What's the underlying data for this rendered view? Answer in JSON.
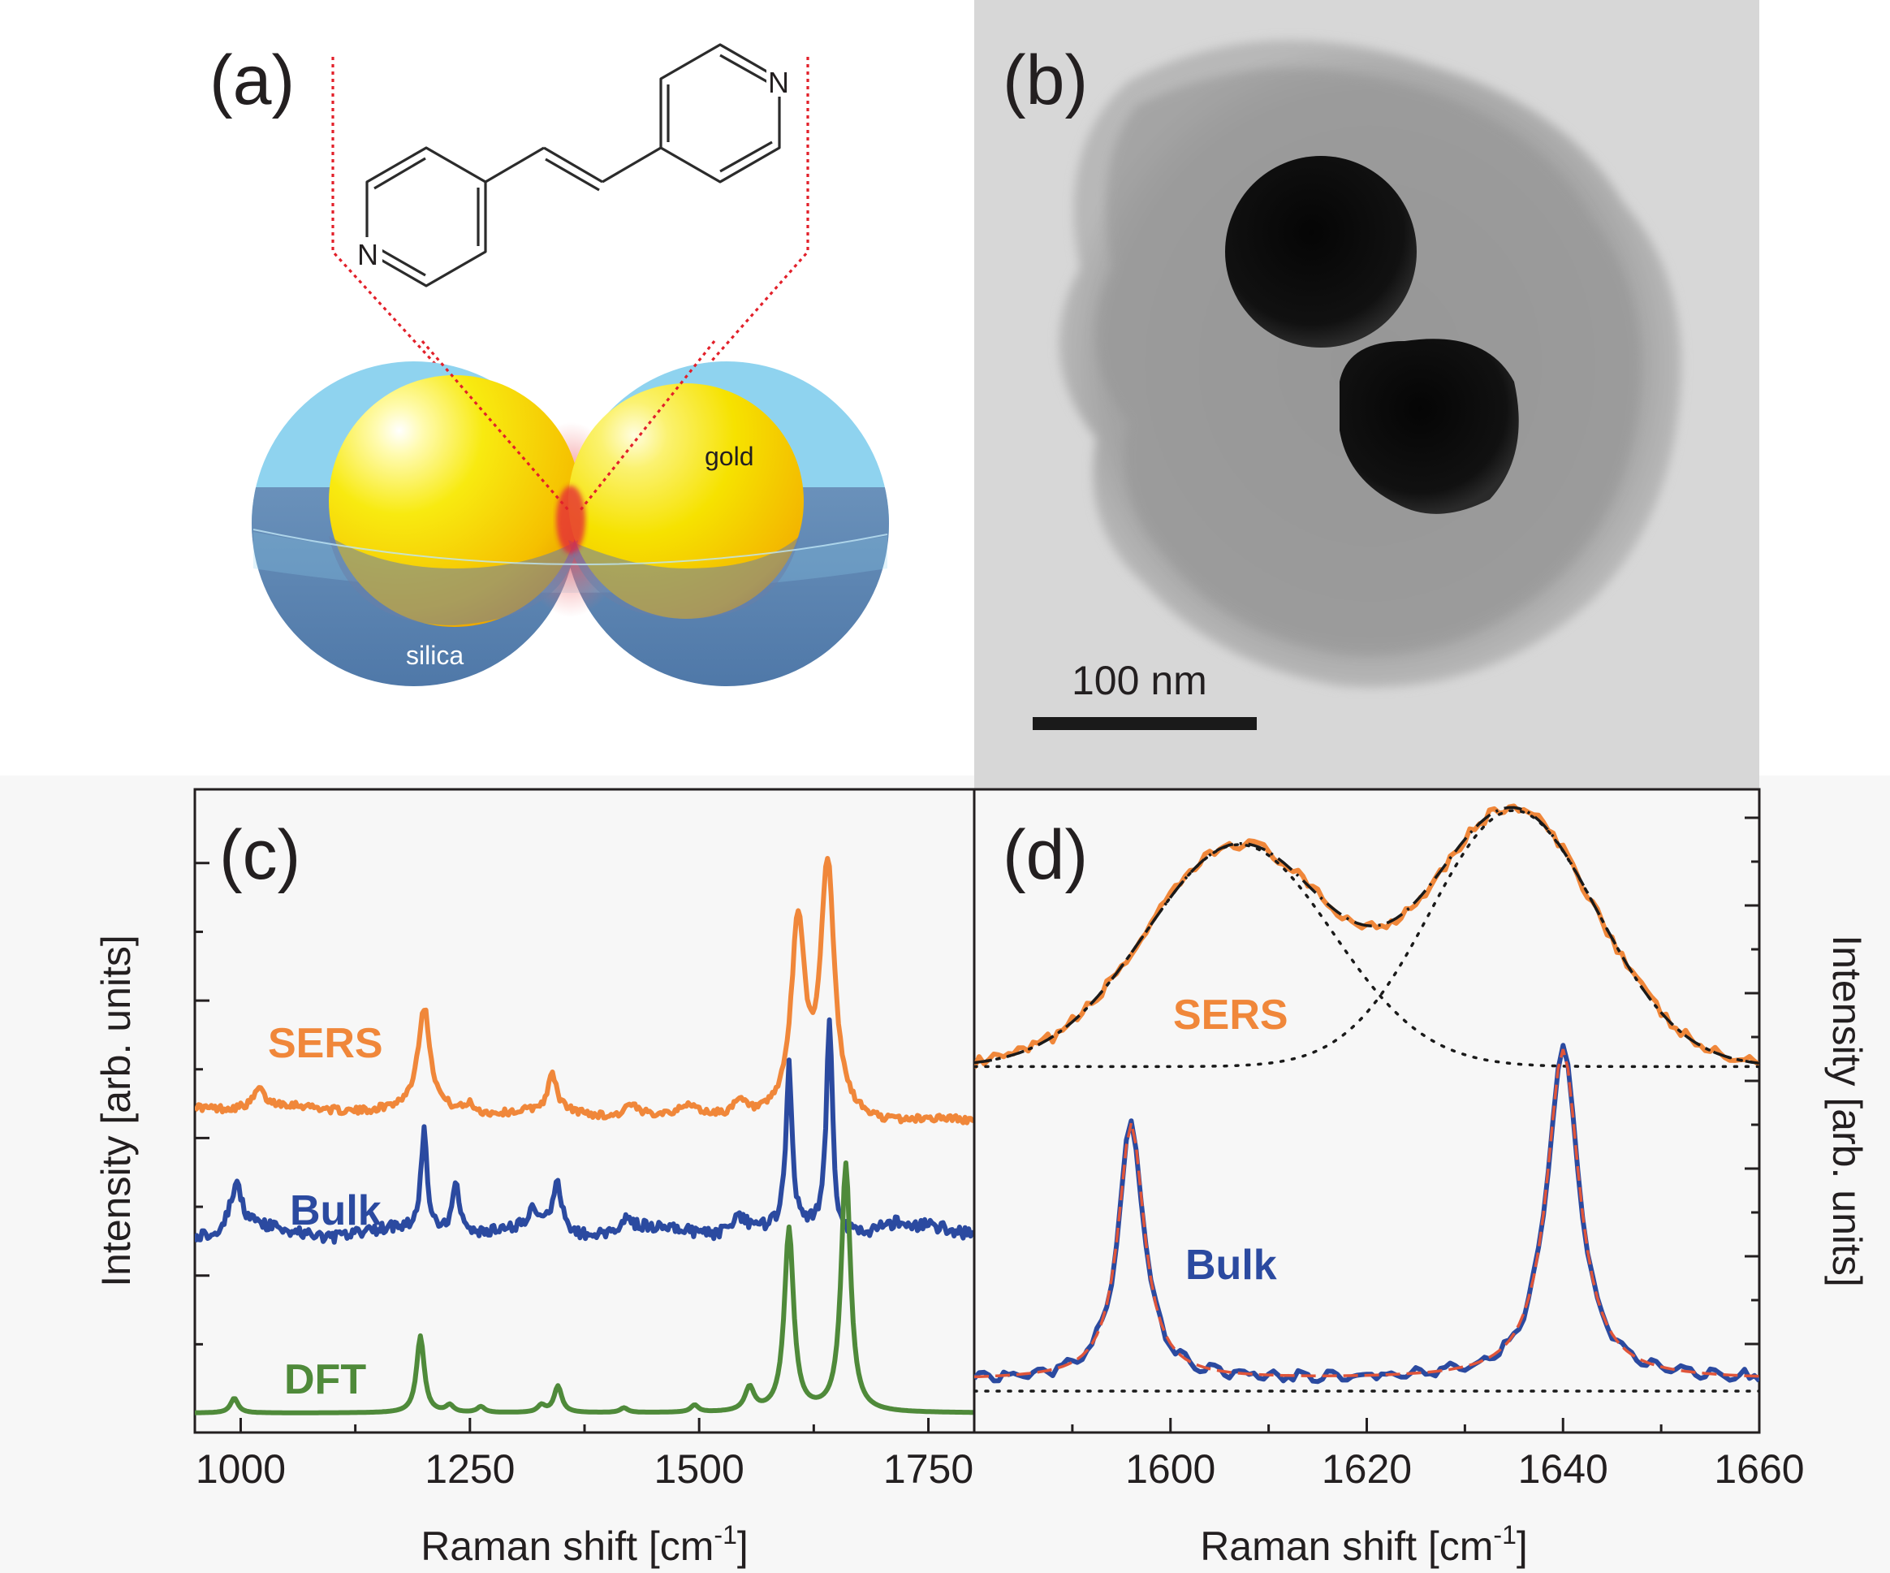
{
  "panels": {
    "a": {
      "label": "(a)",
      "gold_label": "gold",
      "silica_label": "silica",
      "atom_labels": [
        "N",
        "N"
      ]
    },
    "b": {
      "label": "(b)",
      "scalebar_label": "100 nm"
    },
    "c": {
      "label": "(c)"
    },
    "d": {
      "label": "(d)"
    }
  },
  "colors": {
    "sers": "#f0873a",
    "bulk": "#2b4aa0",
    "dft": "#4f8a3a",
    "fit_dash": "#e0553a",
    "shell": "#8fd3ef",
    "gold": "#f5d400"
  },
  "chart_data": [
    {
      "type": "line",
      "panel": "c",
      "xlabel": "Raman shift [cm",
      "xlabel_sup": "-1",
      "xlabel_end": "]",
      "ylabel": "Intensity [arb. units]",
      "xlim": [
        950,
        1800
      ],
      "xticks": [
        1000,
        1250,
        1500,
        1750
      ],
      "y_tick_labels": false,
      "series": [
        {
          "name": "SERS",
          "baseline": 0.52,
          "slope": -0.03,
          "noise": 0.006,
          "peaks": [
            [
              1020,
              0.03,
              6
            ],
            [
              1200,
              0.17,
              8
            ],
            [
              1250,
              0.015,
              6
            ],
            [
              1340,
              0.06,
              6
            ],
            [
              1425,
              0.02,
              8
            ],
            [
              1490,
              0.015,
              6
            ],
            [
              1545,
              0.025,
              10
            ],
            [
              1608,
              0.32,
              9
            ],
            [
              1640,
              0.42,
              9
            ]
          ]
        },
        {
          "name": "Bulk",
          "baseline": 0.305,
          "slope": 0.0,
          "noise": 0.01,
          "peaks": [
            [
              995,
              0.08,
              8
            ],
            [
              1200,
              0.17,
              4
            ],
            [
              1235,
              0.09,
              5
            ],
            [
              1320,
              0.03,
              6
            ],
            [
              1345,
              0.08,
              6
            ],
            [
              1420,
              0.025,
              10
            ],
            [
              1545,
              0.03,
              12
            ],
            [
              1598,
              0.27,
              4
            ],
            [
              1642,
              0.36,
              4
            ],
            [
              1710,
              0.015,
              20
            ]
          ]
        },
        {
          "name": "DFT",
          "baseline": 0.0,
          "slope": 0.0,
          "noise": 0.0,
          "peaks": [
            [
              993,
              0.025,
              5
            ],
            [
              1196,
              0.13,
              5
            ],
            [
              1228,
              0.012,
              5
            ],
            [
              1262,
              0.01,
              5
            ],
            [
              1328,
              0.012,
              5
            ],
            [
              1346,
              0.045,
              5
            ],
            [
              1418,
              0.008,
              5
            ],
            [
              1495,
              0.012,
              5
            ],
            [
              1555,
              0.04,
              6
            ],
            [
              1598,
              0.31,
              6
            ],
            [
              1660,
              0.42,
              6
            ]
          ]
        }
      ]
    },
    {
      "type": "line",
      "panel": "d",
      "xlabel": "Raman shift [cm",
      "xlabel_sup": "-1",
      "xlabel_end": "]",
      "ylabel": "Intensity [arb. units]",
      "xlim": [
        1580,
        1660
      ],
      "xticks": [
        1600,
        1620,
        1640,
        1660
      ],
      "y_tick_labels": false,
      "series": [
        {
          "name": "SERS",
          "baseline": 0.57,
          "noise": 0.01,
          "peaks": [
            [
              1607,
              0.39,
              9.5
            ],
            [
              1635,
              0.45,
              8.5
            ]
          ]
        },
        {
          "name": "Bulk",
          "baseline": 0.0,
          "noise": 0.006,
          "peaks": [
            [
              1596,
              0.45,
              1.6
            ],
            [
              1640,
              0.58,
              2.0
            ]
          ],
          "offset": 0.02
        }
      ]
    }
  ]
}
